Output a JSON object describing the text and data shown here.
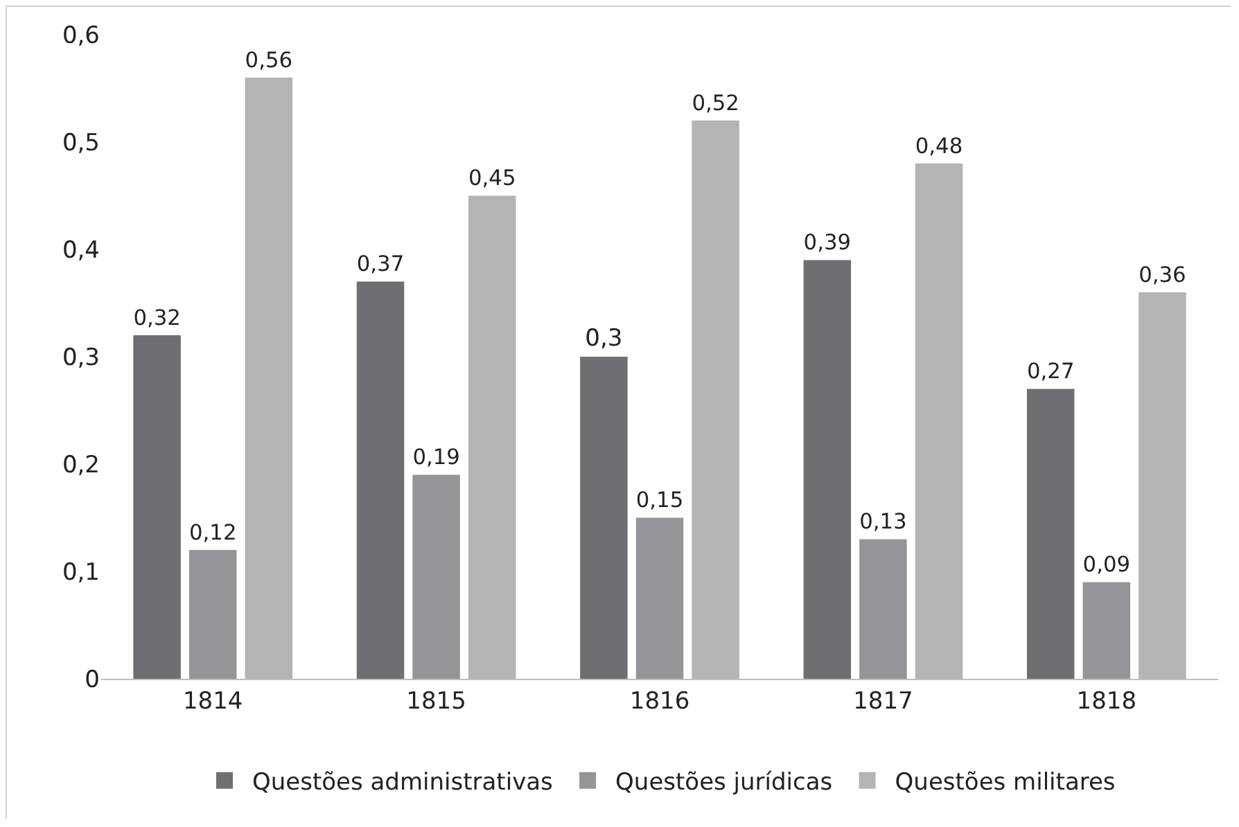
{
  "chart_data": {
    "type": "bar",
    "categories": [
      "1814",
      "1815",
      "1816",
      "1817",
      "1818"
    ],
    "series": [
      {
        "name": "Questões administrativas",
        "color": "#6e6f72",
        "values": [
          0.32,
          0.37,
          0.3,
          0.39,
          0.27
        ],
        "value_labels": [
          "0,32",
          "0,37",
          "0,3",
          "0,39",
          "0,27"
        ]
      },
      {
        "name": "Questões jurídicas",
        "color": "#939598",
        "values": [
          0.12,
          0.19,
          0.15,
          0.13,
          0.09
        ],
        "value_labels": [
          "0,12",
          "0,19",
          "0,15",
          "0,13",
          "0,09"
        ]
      },
      {
        "name": "Questões militares",
        "color": "#b3b4b6",
        "values": [
          0.56,
          0.45,
          0.52,
          0.48,
          0.36
        ],
        "value_labels": [
          "0,56",
          "0,45",
          "0,52",
          "0,48",
          "0,36"
        ]
      }
    ],
    "ylim": [
      0,
      0.6
    ],
    "yticks": [
      0,
      {
        "value": 0.1,
        "label": "0,1"
      },
      {
        "value": 0.2,
        "label": "0,2"
      },
      {
        "value": 0.3,
        "label": "0,3"
      },
      {
        "value": 0.4,
        "label": "0,4"
      },
      {
        "value": 0.5,
        "label": "0,5"
      },
      {
        "value": 0.6,
        "label": "0,6"
      }
    ],
    "grid": false,
    "legend": "bottom"
  }
}
